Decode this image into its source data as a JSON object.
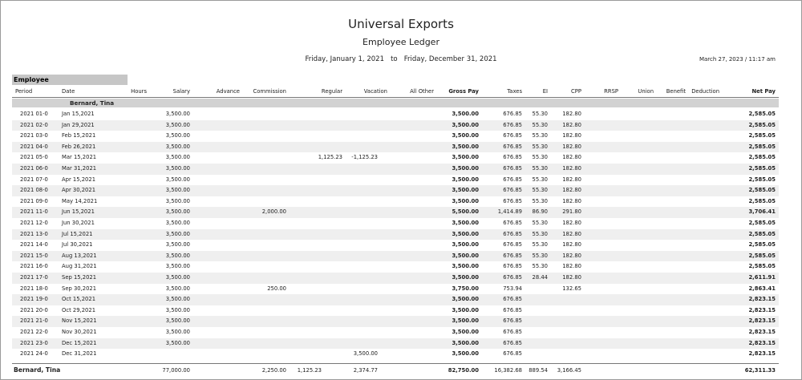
{
  "report": {
    "company": "Universal Exports",
    "title": "Employee Ledger",
    "date_range_start": "Friday, January 1, 2021",
    "date_range_to": "to",
    "date_range_end": "Friday, December 31, 2021",
    "printed_at": "March 27, 2023  /  11:17 am"
  },
  "group_label": "Employee",
  "columns": {
    "period": "Period",
    "date": "Date",
    "hours": "Hours",
    "salary": "Salary",
    "advance": "Advance",
    "commission": "Commission",
    "regular": "Regular",
    "vacation": "Vacation",
    "all_other": "All Other",
    "gross_pay": "Gross Pay",
    "taxes": "Taxes",
    "ei": "EI",
    "cpp": "CPP",
    "rrsp": "RRSP",
    "union": "Union",
    "benefit": "Benefit",
    "deduction": "Deduction",
    "net_pay": "Net Pay"
  },
  "employee": {
    "name": "Bernard, Tina"
  },
  "rows": [
    {
      "period": "2021 01-0",
      "date": "Jan 15,2021",
      "salary": "3,500.00",
      "commission": "",
      "regular": "",
      "vacation": "",
      "gross": "3,500.00",
      "taxes": "676.85",
      "ei": "55.30",
      "cpp": "182.80",
      "net": "2,585.05"
    },
    {
      "period": "2021 02-0",
      "date": "Jan 29,2021",
      "salary": "3,500.00",
      "commission": "",
      "regular": "",
      "vacation": "",
      "gross": "3,500.00",
      "taxes": "676.85",
      "ei": "55.30",
      "cpp": "182.80",
      "net": "2,585.05"
    },
    {
      "period": "2021 03-0",
      "date": "Feb 15,2021",
      "salary": "3,500.00",
      "commission": "",
      "regular": "",
      "vacation": "",
      "gross": "3,500.00",
      "taxes": "676.85",
      "ei": "55.30",
      "cpp": "182.80",
      "net": "2,585.05"
    },
    {
      "period": "2021 04-0",
      "date": "Feb 26,2021",
      "salary": "3,500.00",
      "commission": "",
      "regular": "",
      "vacation": "",
      "gross": "3,500.00",
      "taxes": "676.85",
      "ei": "55.30",
      "cpp": "182.80",
      "net": "2,585.05"
    },
    {
      "period": "2021 05-0",
      "date": "Mar 15,2021",
      "salary": "3,500.00",
      "commission": "",
      "regular": "1,125.23",
      "vacation": "-1,125.23",
      "gross": "3,500.00",
      "taxes": "676.85",
      "ei": "55.30",
      "cpp": "182.80",
      "net": "2,585.05"
    },
    {
      "period": "2021 06-0",
      "date": "Mar 31,2021",
      "salary": "3,500.00",
      "commission": "",
      "regular": "",
      "vacation": "",
      "gross": "3,500.00",
      "taxes": "676.85",
      "ei": "55.30",
      "cpp": "182.80",
      "net": "2,585.05"
    },
    {
      "period": "2021 07-0",
      "date": "Apr 15,2021",
      "salary": "3,500.00",
      "commission": "",
      "regular": "",
      "vacation": "",
      "gross": "3,500.00",
      "taxes": "676.85",
      "ei": "55.30",
      "cpp": "182.80",
      "net": "2,585.05"
    },
    {
      "period": "2021 08-0",
      "date": "Apr 30,2021",
      "salary": "3,500.00",
      "commission": "",
      "regular": "",
      "vacation": "",
      "gross": "3,500.00",
      "taxes": "676.85",
      "ei": "55.30",
      "cpp": "182.80",
      "net": "2,585.05"
    },
    {
      "period": "2021 09-0",
      "date": "May 14,2021",
      "salary": "3,500.00",
      "commission": "",
      "regular": "",
      "vacation": "",
      "gross": "3,500.00",
      "taxes": "676.85",
      "ei": "55.30",
      "cpp": "182.80",
      "net": "2,585.05"
    },
    {
      "period": "2021 11-0",
      "date": "Jun 15,2021",
      "salary": "3,500.00",
      "commission": "2,000.00",
      "regular": "",
      "vacation": "",
      "gross": "5,500.00",
      "taxes": "1,414.89",
      "ei": "86.90",
      "cpp": "291.80",
      "net": "3,706.41"
    },
    {
      "period": "2021 12-0",
      "date": "Jun 30,2021",
      "salary": "3,500.00",
      "commission": "",
      "regular": "",
      "vacation": "",
      "gross": "3,500.00",
      "taxes": "676.85",
      "ei": "55.30",
      "cpp": "182.80",
      "net": "2,585.05"
    },
    {
      "period": "2021 13-0",
      "date": "Jul 15,2021",
      "salary": "3,500.00",
      "commission": "",
      "regular": "",
      "vacation": "",
      "gross": "3,500.00",
      "taxes": "676.85",
      "ei": "55.30",
      "cpp": "182.80",
      "net": "2,585.05"
    },
    {
      "period": "2021 14-0",
      "date": "Jul 30,2021",
      "salary": "3,500.00",
      "commission": "",
      "regular": "",
      "vacation": "",
      "gross": "3,500.00",
      "taxes": "676.85",
      "ei": "55.30",
      "cpp": "182.80",
      "net": "2,585.05"
    },
    {
      "period": "2021 15-0",
      "date": "Aug 13,2021",
      "salary": "3,500.00",
      "commission": "",
      "regular": "",
      "vacation": "",
      "gross": "3,500.00",
      "taxes": "676.85",
      "ei": "55.30",
      "cpp": "182.80",
      "net": "2,585.05"
    },
    {
      "period": "2021 16-0",
      "date": "Aug 31,2021",
      "salary": "3,500.00",
      "commission": "",
      "regular": "",
      "vacation": "",
      "gross": "3,500.00",
      "taxes": "676.85",
      "ei": "55.30",
      "cpp": "182.80",
      "net": "2,585.05"
    },
    {
      "period": "2021 17-0",
      "date": "Sep 15,2021",
      "salary": "3,500.00",
      "commission": "",
      "regular": "",
      "vacation": "",
      "gross": "3,500.00",
      "taxes": "676.85",
      "ei": "28.44",
      "cpp": "182.80",
      "net": "2,611.91"
    },
    {
      "period": "2021 18-0",
      "date": "Sep 30,2021",
      "salary": "3,500.00",
      "commission": "250.00",
      "regular": "",
      "vacation": "",
      "gross": "3,750.00",
      "taxes": "753.94",
      "ei": "",
      "cpp": "132.65",
      "net": "2,863.41"
    },
    {
      "period": "2021 19-0",
      "date": "Oct 15,2021",
      "salary": "3,500.00",
      "commission": "",
      "regular": "",
      "vacation": "",
      "gross": "3,500.00",
      "taxes": "676.85",
      "ei": "",
      "cpp": "",
      "net": "2,823.15"
    },
    {
      "period": "2021 20-0",
      "date": "Oct 29,2021",
      "salary": "3,500.00",
      "commission": "",
      "regular": "",
      "vacation": "",
      "gross": "3,500.00",
      "taxes": "676.85",
      "ei": "",
      "cpp": "",
      "net": "2,823.15"
    },
    {
      "period": "2021 21-0",
      "date": "Nov 15,2021",
      "salary": "3,500.00",
      "commission": "",
      "regular": "",
      "vacation": "",
      "gross": "3,500.00",
      "taxes": "676.85",
      "ei": "",
      "cpp": "",
      "net": "2,823.15"
    },
    {
      "period": "2021 22-0",
      "date": "Nov 30,2021",
      "salary": "3,500.00",
      "commission": "",
      "regular": "",
      "vacation": "",
      "gross": "3,500.00",
      "taxes": "676.85",
      "ei": "",
      "cpp": "",
      "net": "2,823.15"
    },
    {
      "period": "2021 23-0",
      "date": "Dec 15,2021",
      "salary": "3,500.00",
      "commission": "",
      "regular": "",
      "vacation": "",
      "gross": "3,500.00",
      "taxes": "676.85",
      "ei": "",
      "cpp": "",
      "net": "2,823.15"
    },
    {
      "period": "2021 24-0",
      "date": "Dec 31,2021",
      "salary": "",
      "commission": "",
      "regular": "",
      "vacation": "3,500.00",
      "gross": "3,500.00",
      "taxes": "676.85",
      "ei": "",
      "cpp": "",
      "net": "2,823.15"
    }
  ],
  "totals": {
    "name": "Bernard, Tina",
    "salary": "77,000.00",
    "commission": "2,250.00",
    "regular": "1,125.23",
    "vacation": "2,374.77",
    "gross": "82,750.00",
    "taxes": "16,382.68",
    "ei": "889.54",
    "cpp": "3,166.45",
    "net": "62,311.33"
  }
}
